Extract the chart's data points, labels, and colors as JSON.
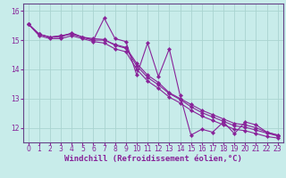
{
  "background_color": "#c8ecea",
  "grid_color": "#aad4d0",
  "line_color": "#882299",
  "axis_spine_color": "#664488",
  "xlabel": "Windchill (Refroidissement éolien,°C)",
  "xlim": [
    -0.5,
    23.5
  ],
  "ylim": [
    11.5,
    16.25
  ],
  "yticks": [
    12,
    13,
    14,
    15,
    16
  ],
  "xticks": [
    0,
    1,
    2,
    3,
    4,
    5,
    6,
    7,
    8,
    9,
    10,
    11,
    12,
    13,
    14,
    15,
    16,
    17,
    18,
    19,
    20,
    21,
    22,
    23
  ],
  "series": [
    [
      15.55,
      15.2,
      15.1,
      15.1,
      15.25,
      15.1,
      15.0,
      15.75,
      15.05,
      14.95,
      13.8,
      14.9,
      13.75,
      14.7,
      13.1,
      11.75,
      11.95,
      11.85,
      12.2,
      11.8,
      12.2,
      12.1,
      11.85,
      11.75
    ],
    [
      15.55,
      15.2,
      15.1,
      15.15,
      15.2,
      15.1,
      15.0,
      15.0,
      14.85,
      14.75,
      14.2,
      13.8,
      13.55,
      13.2,
      13.0,
      12.8,
      12.6,
      12.45,
      12.3,
      12.15,
      12.1,
      12.0,
      11.85,
      11.75
    ],
    [
      15.55,
      15.2,
      15.1,
      15.15,
      15.22,
      15.1,
      15.05,
      15.02,
      14.82,
      14.72,
      14.12,
      13.72,
      13.47,
      13.17,
      12.97,
      12.72,
      12.52,
      12.37,
      12.22,
      12.07,
      12.02,
      11.92,
      11.82,
      11.72
    ],
    [
      15.55,
      15.15,
      15.05,
      15.05,
      15.15,
      15.05,
      14.95,
      14.9,
      14.7,
      14.6,
      14.0,
      13.6,
      13.35,
      13.05,
      12.85,
      12.6,
      12.4,
      12.25,
      12.1,
      11.95,
      11.9,
      11.8,
      11.7,
      11.65
    ]
  ],
  "tick_fontsize": 5.5,
  "axis_label_fontsize": 6.5,
  "tick_color": "#882299",
  "label_color": "#882299"
}
